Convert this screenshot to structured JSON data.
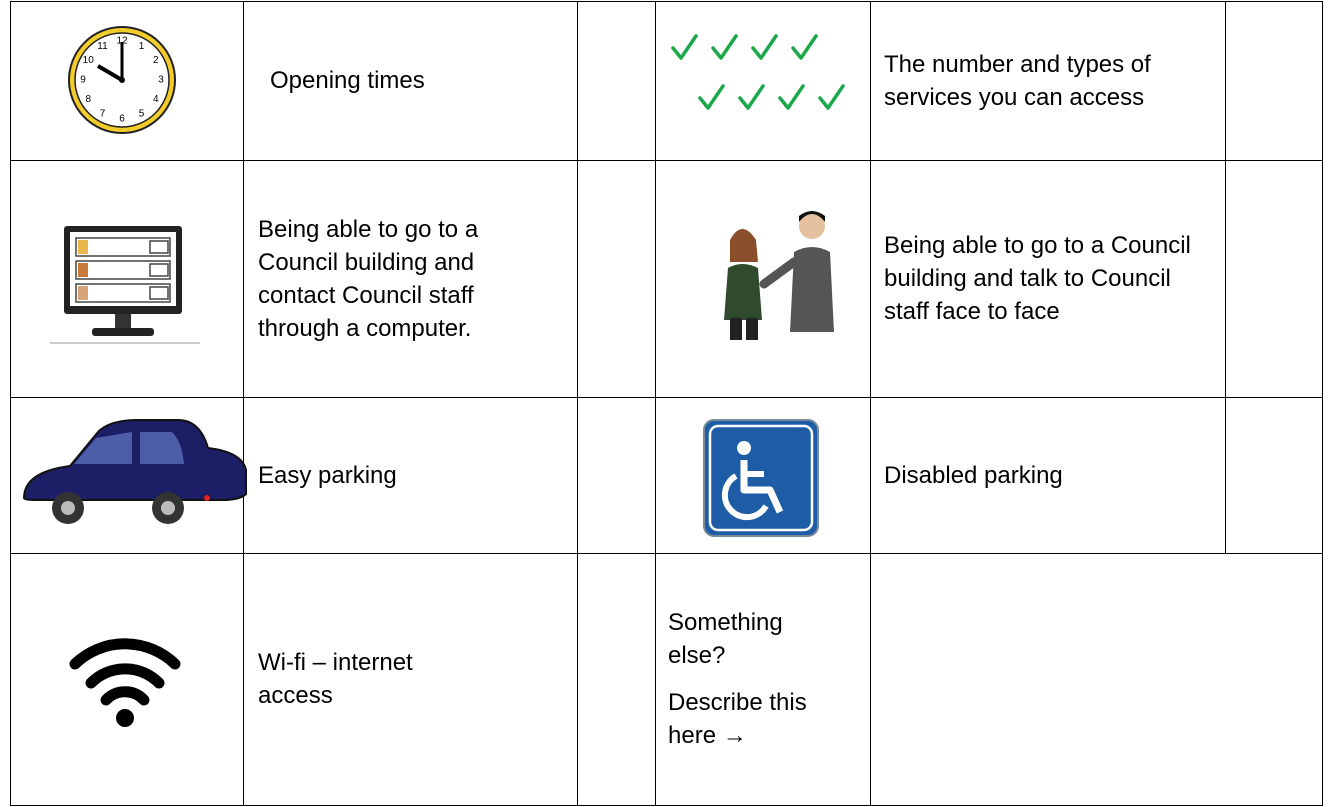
{
  "table": {
    "rows": [
      {
        "left_label": "Opening times",
        "right_label": "The number and types of services you can access"
      },
      {
        "left_label": "Being able to go to a Council building and contact Council staff through a computer.",
        "right_label": "Being able to go to a Council building and talk to Council staff face to face"
      },
      {
        "left_label": "Easy parking",
        "right_label": "Disabled parking"
      },
      {
        "left_label": "Wi-fi – internet access"
      }
    ]
  },
  "other": {
    "question": "Something else?",
    "prompt": "Describe this here →"
  },
  "clock": {
    "numerals": [
      "12",
      "1",
      "2",
      "3",
      "4",
      "5",
      "6",
      "7",
      "8",
      "9",
      "10",
      "11"
    ]
  }
}
